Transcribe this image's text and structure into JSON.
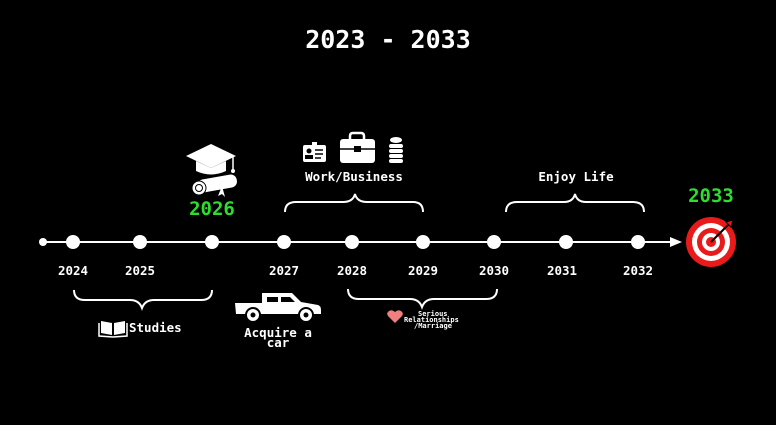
{
  "title": "2023 - 2033",
  "timeline": {
    "years": [
      "2024",
      "2025",
      "2027",
      "2028",
      "2029",
      "2030",
      "2031",
      "2032"
    ],
    "highlight_start": "2026",
    "highlight_end": "2033"
  },
  "phases": {
    "studies": "Studies",
    "work": "Work/Business",
    "enjoy": "Enjoy Life",
    "car_line1": "Acquire a",
    "car_line2": "car",
    "rel_line1": "Serious",
    "rel_line2": "Relationships",
    "rel_line3": "/Marriage"
  },
  "icons": [
    "graduation-cap-icon",
    "diploma-icon",
    "id-card-icon",
    "briefcase-icon",
    "coins-icon",
    "book-icon",
    "pickup-truck-icon",
    "heart-icon",
    "target-icon"
  ],
  "colors": {
    "background": "#000000",
    "text": "#ffffff",
    "highlight": "#2dde2d",
    "target": "#e81a1a",
    "heart": "#f08080"
  }
}
